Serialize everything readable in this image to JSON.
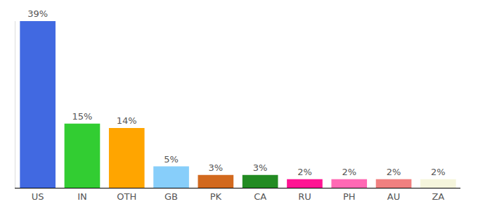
{
  "chart_data": {
    "type": "bar",
    "categories": [
      "US",
      "IN",
      "OTH",
      "GB",
      "PK",
      "CA",
      "RU",
      "PH",
      "AU",
      "ZA"
    ],
    "values": [
      39,
      15,
      14,
      5,
      3,
      3,
      2,
      2,
      2,
      2
    ],
    "value_labels": [
      "39%",
      "15%",
      "14%",
      "5%",
      "3%",
      "3%",
      "2%",
      "2%",
      "2%",
      "2%"
    ],
    "colors": [
      "#4169e1",
      "#32cd32",
      "#ffa500",
      "#87cefa",
      "#d2691e",
      "#228b22",
      "#ff1493",
      "#ff69b4",
      "#f08080",
      "#f5f5dc"
    ],
    "ylim": [
      0,
      39
    ],
    "data_labels": true,
    "tick_labels": "x",
    "grid": false
  }
}
